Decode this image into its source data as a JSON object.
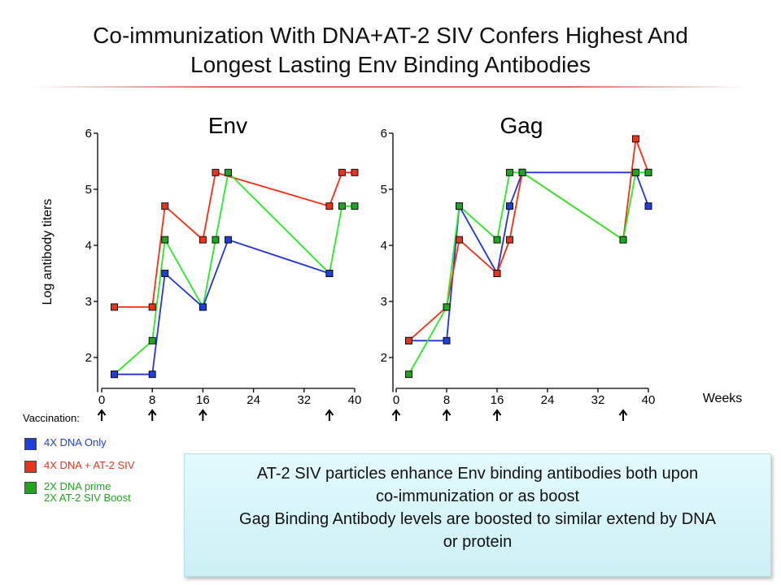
{
  "slide": {
    "title_line1": "Co-immunization With DNA+AT-2 SIV Confers Highest And",
    "title_line2": "Longest Lasting Env Binding Antibodies",
    "title_rule_color": "#e07060"
  },
  "vaccination": {
    "label": "Vaccination:",
    "weeks": [
      0,
      8,
      16,
      36
    ]
  },
  "legend": [
    {
      "label": "4X DNA Only",
      "color": "#1f3fdc"
    },
    {
      "label": "4X DNA + AT-2 SIV",
      "color": "#e8341c"
    },
    {
      "label": "2X DNA prime\n2X AT-2 SIV Boost",
      "color": "#1fa51f"
    }
  ],
  "note": {
    "line1": "AT-2 SIV particles enhance Env binding antibodies both upon",
    "line2": "co-immunization or as boost",
    "line3": "Gag Binding Antibody levels are boosted to similar extend by DNA",
    "line4": "or protein"
  },
  "chart_data": [
    {
      "type": "line",
      "title": "Env",
      "ylabel": "Log antibody titers",
      "xlabel": "",
      "xlim": [
        0,
        40
      ],
      "ylim": [
        1.5,
        6
      ],
      "x_ticks": [
        0,
        8,
        16,
        24,
        32,
        40
      ],
      "y_ticks": [
        2,
        3,
        4,
        5,
        6
      ],
      "grid": false,
      "series": [
        {
          "name": "4X DNA + AT-2 SIV",
          "line_color": "#ff2a10",
          "marker_color": "#e8341c",
          "x": [
            2,
            8,
            10,
            16,
            18,
            36,
            38,
            40
          ],
          "y": [
            2.9,
            2.9,
            4.7,
            4.1,
            5.3,
            4.7,
            5.3,
            5.3
          ]
        },
        {
          "name": "2X DNA prime 2X AT-2 SIV Boost",
          "line_color": "#22ee22",
          "marker_color": "#1fa51f",
          "x": [
            2,
            8,
            10,
            16,
            18,
            20,
            36,
            38,
            40
          ],
          "y": [
            1.7,
            2.3,
            4.1,
            2.9,
            4.1,
            5.3,
            3.5,
            4.7,
            4.7
          ]
        },
        {
          "name": "4X DNA Only",
          "line_color": "#2233dd",
          "marker_color": "#1f3fdc",
          "x": [
            2,
            8,
            10,
            16,
            20,
            36
          ],
          "y": [
            1.7,
            1.7,
            3.5,
            2.9,
            4.1,
            3.5
          ]
        }
      ]
    },
    {
      "type": "line",
      "title": "Gag",
      "ylabel": "",
      "xlabel": "Weeks",
      "xlim": [
        0,
        40
      ],
      "ylim": [
        1.5,
        6
      ],
      "x_ticks": [
        0,
        8,
        16,
        24,
        32,
        40
      ],
      "y_ticks": [
        2,
        3,
        4,
        5,
        6
      ],
      "grid": false,
      "series": [
        {
          "name": "4X DNA Only",
          "line_color": "#2233dd",
          "marker_color": "#1f3fdc",
          "x": [
            2,
            8,
            10,
            16,
            18,
            20,
            38,
            40
          ],
          "y": [
            2.3,
            2.3,
            4.7,
            3.5,
            4.7,
            5.3,
            5.3,
            4.7
          ]
        },
        {
          "name": "4X DNA + AT-2 SIV",
          "line_color": "#ff2a10",
          "marker_color": "#e8341c",
          "x": [
            2,
            8,
            10,
            16,
            18,
            20,
            36,
            38,
            40
          ],
          "y": [
            2.3,
            2.9,
            4.1,
            3.5,
            4.1,
            5.3,
            4.1,
            5.9,
            5.3
          ]
        },
        {
          "name": "2X DNA prime 2X AT-2 SIV Boost",
          "line_color": "#22ee22",
          "marker_color": "#1fa51f",
          "x": [
            2,
            8,
            10,
            16,
            18,
            20,
            36,
            38,
            40
          ],
          "y": [
            1.7,
            2.9,
            4.7,
            4.1,
            5.3,
            5.3,
            4.1,
            5.3,
            5.3
          ]
        }
      ]
    }
  ]
}
